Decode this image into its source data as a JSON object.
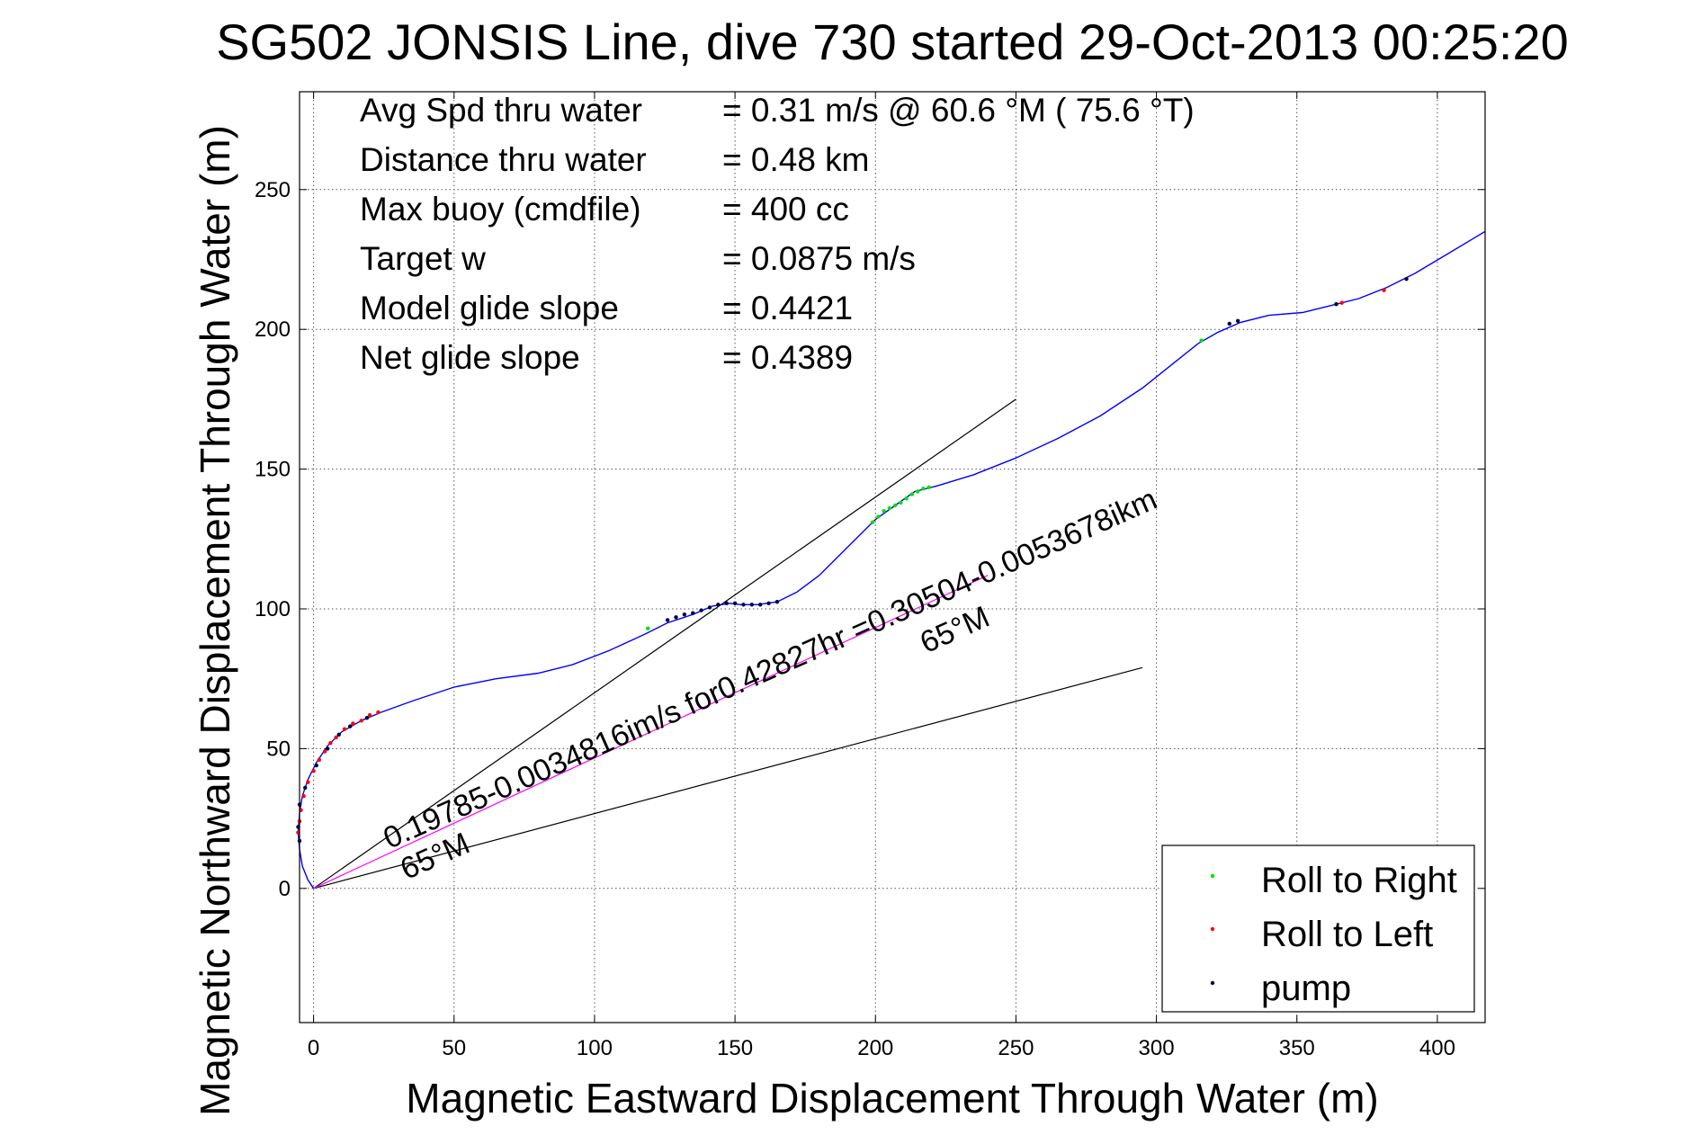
{
  "chart_data": {
    "type": "scatter",
    "title": "SG502 JONSIS Line, dive 730 started 29-Oct-2013 00:25:20",
    "xlabel": "Magnetic Eastward Displacement Through Water (m)",
    "ylabel": "Magnetic Northward Displacement Through Water (m)",
    "xlim": [
      -5,
      417
    ],
    "ylim": [
      -48,
      285
    ],
    "xticks": [
      0,
      50,
      100,
      150,
      200,
      250,
      300,
      350,
      400
    ],
    "yticks": [
      0,
      50,
      100,
      150,
      200,
      250
    ],
    "grid": true,
    "legend_position": "bottom-right",
    "info_lines": [
      {
        "label": "Avg Spd thru water",
        "value": "=  0.31 m/s @  60.6 °M ( 75.6 °T)"
      },
      {
        "label": "Distance thru water",
        "value": "=  0.48 km"
      },
      {
        "label": "Max buoy (cmdfile)",
        "value": "= 400 cc"
      },
      {
        "label": "Target w",
        "value": "= 0.0875 m/s"
      },
      {
        "label": "Model glide slope",
        "value": "= 0.4421"
      },
      {
        "label": "Net glide slope",
        "value": "= 0.4389"
      }
    ],
    "track": {
      "color": "#0000ff",
      "points": [
        [
          0,
          0
        ],
        [
          -2,
          3
        ],
        [
          -4,
          8
        ],
        [
          -5,
          14
        ],
        [
          -5.5,
          20
        ],
        [
          -5,
          27
        ],
        [
          -4,
          33
        ],
        [
          -2,
          39
        ],
        [
          1,
          45
        ],
        [
          5,
          51
        ],
        [
          10,
          56
        ],
        [
          17,
          60
        ],
        [
          24,
          63
        ],
        [
          35,
          67
        ],
        [
          50,
          72
        ],
        [
          65,
          75
        ],
        [
          80,
          77
        ],
        [
          92,
          80
        ],
        [
          105,
          85
        ],
        [
          118,
          91
        ],
        [
          126,
          95
        ],
        [
          135,
          98
        ],
        [
          142,
          101
        ],
        [
          148,
          102
        ],
        [
          152,
          101.5
        ],
        [
          158,
          101.5
        ],
        [
          165,
          102.5
        ],
        [
          172,
          106
        ],
        [
          180,
          112
        ],
        [
          190,
          122
        ],
        [
          200,
          132
        ],
        [
          207,
          137
        ],
        [
          214,
          142
        ],
        [
          222,
          144
        ],
        [
          235,
          148
        ],
        [
          250,
          154
        ],
        [
          265,
          161
        ],
        [
          280,
          169
        ],
        [
          295,
          179
        ],
        [
          305,
          187
        ],
        [
          315,
          195
        ],
        [
          322,
          199
        ],
        [
          330,
          202.5
        ],
        [
          340,
          205
        ],
        [
          352,
          206
        ],
        [
          362,
          208.5
        ],
        [
          372,
          211
        ],
        [
          382,
          215
        ],
        [
          392,
          220
        ],
        [
          402,
          226
        ],
        [
          412,
          232
        ],
        [
          417,
          235
        ]
      ]
    },
    "events": {
      "roll_right": {
        "color": "#00e000",
        "points": [
          [
            119,
            93
          ],
          [
            199,
            131
          ],
          [
            201,
            133
          ],
          [
            203,
            135
          ],
          [
            205,
            136
          ],
          [
            207,
            137
          ],
          [
            209,
            138
          ],
          [
            211,
            139.5
          ],
          [
            213,
            141
          ],
          [
            215,
            142
          ],
          [
            217,
            143
          ],
          [
            219,
            143.5
          ],
          [
            316,
            196
          ],
          [
            364,
            209
          ]
        ]
      },
      "roll_left": {
        "color": "#ff0000",
        "points": [
          [
            -5.5,
            20
          ],
          [
            -5,
            24
          ],
          [
            -4.5,
            28
          ],
          [
            -3.5,
            33
          ],
          [
            -2,
            38
          ],
          [
            0,
            42
          ],
          [
            2,
            46
          ],
          [
            4,
            49
          ],
          [
            6,
            52
          ],
          [
            8,
            54
          ],
          [
            11,
            57
          ],
          [
            14,
            59
          ],
          [
            17,
            60
          ],
          [
            20,
            62
          ],
          [
            23,
            63
          ],
          [
            366,
            209.5
          ],
          [
            381,
            214
          ]
        ]
      },
      "pump": {
        "color": "#00003a",
        "points": [
          [
            -5,
            17
          ],
          [
            -5.5,
            22
          ],
          [
            -5,
            30
          ],
          [
            -3,
            36
          ],
          [
            1,
            44
          ],
          [
            5,
            50
          ],
          [
            9,
            55
          ],
          [
            13,
            58
          ],
          [
            19,
            61
          ],
          [
            126,
            96
          ],
          [
            129,
            97
          ],
          [
            132,
            98
          ],
          [
            135,
            98.5
          ],
          [
            138,
            99.5
          ],
          [
            141,
            100.5
          ],
          [
            144,
            101.5
          ],
          [
            147,
            102
          ],
          [
            150,
            102
          ],
          [
            153,
            101.5
          ],
          [
            156,
            101.5
          ],
          [
            159,
            101.5
          ],
          [
            162,
            102
          ],
          [
            165,
            102.5
          ],
          [
            326,
            202
          ],
          [
            329,
            203
          ],
          [
            364,
            209
          ],
          [
            389,
            218
          ]
        ]
      }
    },
    "reference_lines": [
      {
        "from": [
          0,
          0
        ],
        "to": [
          250,
          175
        ],
        "color": "#000000"
      },
      {
        "from": [
          0,
          0
        ],
        "to": [
          295,
          79
        ],
        "color": "#000000"
      },
      {
        "from": [
          0,
          0
        ],
        "to": [
          240,
          112
        ],
        "color": "#ff00ff"
      }
    ],
    "annotations": [
      {
        "text": "0.19785-0.0034816im/s for0.42827hr =0.30504-0.0053678ikm",
        "x": 27,
        "y": 14,
        "rotation": -24
      },
      {
        "text": "65°M",
        "x": 33,
        "y": 3,
        "rotation": -24
      },
      {
        "text": "65°M",
        "x": 218,
        "y": 84,
        "rotation": -24
      }
    ],
    "legend": [
      {
        "label": "Roll to Right",
        "color": "#00e000"
      },
      {
        "label": "Roll to Left",
        "color": "#ff0000"
      },
      {
        "label": "pump",
        "color": "#00003a"
      }
    ]
  }
}
